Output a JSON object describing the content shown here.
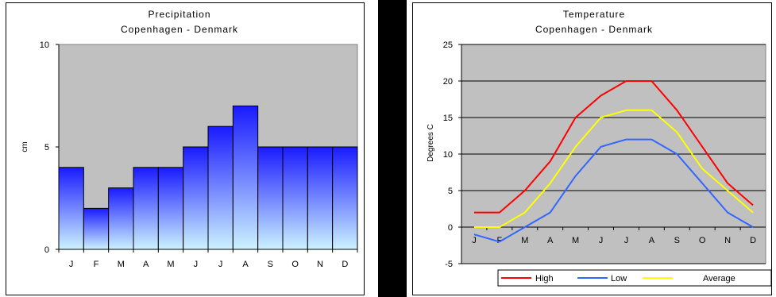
{
  "chart_data": [
    {
      "type": "bar",
      "title": "Precipitation",
      "subtitle": "Copenhagen - Denmark",
      "xlabel": "",
      "ylabel": "cm",
      "ylim": [
        0,
        10
      ],
      "yticks": [
        0,
        5,
        10
      ],
      "categories": [
        "J",
        "F",
        "M",
        "A",
        "M",
        "J",
        "J",
        "A",
        "S",
        "O",
        "N",
        "D"
      ],
      "values": [
        4,
        2,
        3,
        4,
        4,
        5,
        6,
        7,
        5,
        5,
        5,
        5
      ],
      "grid": false,
      "colors": {
        "plot_bg": "#c0c0c0",
        "bar_top": "#1a1aff",
        "bar_bottom": "#ccf2ff"
      }
    },
    {
      "type": "line",
      "title": "Temperature",
      "subtitle": "Copenhagen - Denmark",
      "xlabel": "",
      "ylabel": "Degrees C",
      "ylim": [
        -5,
        25
      ],
      "yticks": [
        -5,
        0,
        5,
        10,
        15,
        20,
        25
      ],
      "categories": [
        "J",
        "F",
        "M",
        "A",
        "M",
        "J",
        "J",
        "A",
        "S",
        "O",
        "N",
        "D"
      ],
      "series": [
        {
          "name": "High",
          "values": [
            2,
            2,
            5,
            9,
            15,
            18,
            20,
            20,
            16,
            11,
            6,
            3
          ],
          "color": "#ff0000"
        },
        {
          "name": "Low",
          "values": [
            -1,
            -2,
            0,
            2,
            7,
            11,
            12,
            12,
            10,
            6,
            2,
            0
          ],
          "color": "#3366ff"
        },
        {
          "name": "Average",
          "values": [
            0,
            0,
            2,
            6,
            11,
            15,
            16,
            16,
            13,
            8,
            5,
            2
          ],
          "color": "#ffff00"
        }
      ],
      "grid": true,
      "legend": "bottom-right",
      "colors": {
        "plot_bg": "#c0c0c0",
        "grid": "#000000"
      }
    }
  ]
}
